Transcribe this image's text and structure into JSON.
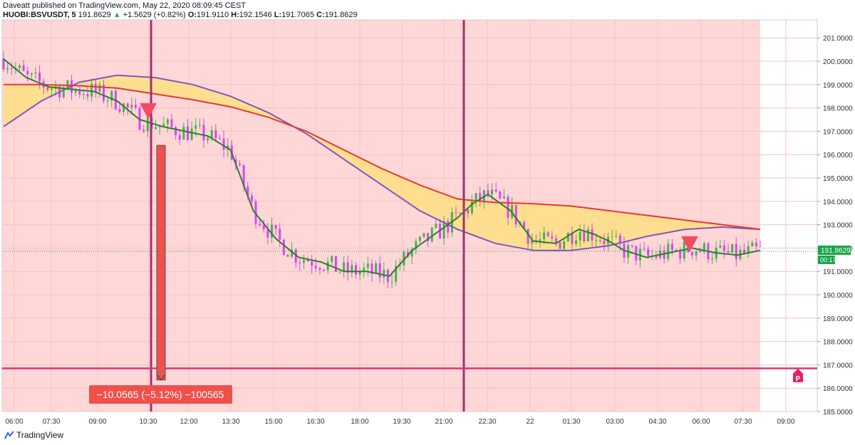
{
  "header": {
    "published_line": "Daveatt published on TradingView.com, May 22, 2020 08:09:45 CEST",
    "symbol": "HUOBI:BSVUSDT, 5",
    "last": "191.8629",
    "change": "+1.5629 (+0.82%)",
    "o_label": "O:",
    "o_value": "191.9110",
    "h_label": "H:",
    "h_value": "192.1546",
    "l_label": "L:",
    "l_value": "191.7065",
    "c_label": "C:",
    "c_value": "191.8629"
  },
  "footer": {
    "logo_text": "TradingView"
  },
  "colors": {
    "background_zone": "#ffd7d7",
    "up_candle": "#4caf50",
    "down_candle": "#d946ef",
    "fast_ma": "#2e7d32",
    "slow_ma_red": "#e53935",
    "slow_ma_purple": "#7e57c2",
    "cloud_fill": "#ffe082",
    "vertical_lines": "#a0306b",
    "horizontal_line": "#e0347a",
    "measure_box": "#f0504a",
    "price_tag": "#16a34a",
    "sell_marker": "#f44a66"
  },
  "chart_data": {
    "type": "candlestick",
    "symbol": "HUOBI:BSVUSDT",
    "interval": "5",
    "y_axis": {
      "ticks": [
        "201.0000",
        "200.0000",
        "199.0000",
        "198.0000",
        "197.0000",
        "196.0000",
        "195.0000",
        "194.0000",
        "193.0000",
        "192.0000",
        "191.0000",
        "190.0000",
        "189.0000",
        "188.0000",
        "187.0000",
        "186.0000",
        "185.0000"
      ],
      "ylim": [
        185,
        201.3
      ]
    },
    "x_axis": {
      "ticks": [
        "06:00",
        "07:30",
        "09:00",
        "10:30",
        "12:00",
        "13:30",
        "15:00",
        "16:30",
        "18:00",
        "19:30",
        "21:00",
        "22:30",
        "22",
        "01:30",
        "03:00",
        "04:30",
        "06:00",
        "07:30",
        "09:00"
      ]
    },
    "last_price": {
      "value": 191.8629,
      "label": "191.8629",
      "countdown": "00:17"
    },
    "horizontal_line": {
      "price": 186.85
    },
    "vertical_lines_time": [
      "10:15",
      "21:30"
    ],
    "measure": {
      "label": "−10.0565 (−5.12%) −100565",
      "from_price": 196.4,
      "to_price": 186.35,
      "time": "10:45"
    },
    "sell_markers": [
      {
        "time": "10:30",
        "price": 197.9
      },
      {
        "time": "05:30",
        "price": 192.2
      }
    ],
    "pattern_marker": {
      "label": "P",
      "price": 186.5,
      "time": "09:00"
    },
    "shaded_zone": {
      "from_time": "05:30",
      "to_time": "08:00"
    },
    "series": [
      {
        "role": "fast_ma",
        "t": [
          0,
          0.03,
          0.06,
          0.09,
          0.12,
          0.15,
          0.18,
          0.21,
          0.24,
          0.27,
          0.3,
          0.33,
          0.36,
          0.39,
          0.42,
          0.45,
          0.48,
          0.51,
          0.54,
          0.57,
          0.6,
          0.62,
          0.64,
          0.67,
          0.7,
          0.73,
          0.76,
          0.78,
          0.8,
          0.82,
          0.85,
          0.88,
          0.91,
          0.94,
          0.97,
          1.0
        ],
        "price": [
          200.1,
          199.3,
          198.9,
          198.8,
          198.7,
          198.3,
          197.5,
          197.2,
          197.0,
          196.8,
          196.2,
          193.6,
          192.4,
          191.6,
          191.4,
          191.0,
          191.0,
          190.8,
          191.9,
          192.6,
          193.3,
          193.9,
          194.3,
          193.6,
          192.3,
          192.2,
          192.8,
          192.6,
          192.3,
          191.9,
          191.6,
          191.8,
          192.0,
          191.8,
          191.7,
          191.9
        ]
      },
      {
        "role": "slow_ma_red",
        "t": [
          0,
          0.05,
          0.1,
          0.15,
          0.2,
          0.25,
          0.3,
          0.35,
          0.4,
          0.45,
          0.5,
          0.55,
          0.6,
          0.65,
          0.7,
          0.75,
          0.8,
          0.85,
          0.9,
          0.95,
          1.0
        ],
        "price": [
          199.0,
          199.0,
          198.95,
          198.85,
          198.6,
          198.35,
          198.05,
          197.6,
          197.0,
          196.2,
          195.4,
          194.7,
          194.1,
          193.95,
          193.9,
          193.8,
          193.6,
          193.4,
          193.2,
          193.0,
          192.8
        ]
      },
      {
        "role": "slow_ma_purple",
        "t": [
          0,
          0.05,
          0.1,
          0.15,
          0.2,
          0.25,
          0.3,
          0.35,
          0.4,
          0.45,
          0.5,
          0.55,
          0.6,
          0.65,
          0.7,
          0.75,
          0.8,
          0.85,
          0.9,
          0.95,
          1.0
        ],
        "price": [
          197.2,
          198.3,
          199.1,
          199.4,
          199.3,
          199.0,
          198.5,
          197.8,
          196.9,
          195.8,
          194.7,
          193.6,
          192.8,
          192.2,
          191.9,
          191.9,
          192.1,
          192.5,
          192.8,
          192.9,
          192.8
        ]
      }
    ]
  }
}
